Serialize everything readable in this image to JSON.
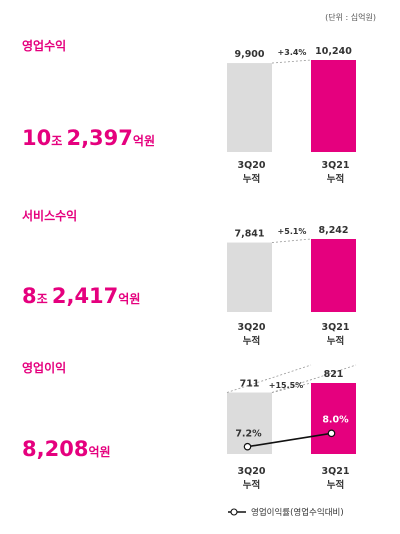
{
  "unit_note": "(단위 : 십억원)",
  "colors": {
    "accent": "#e5007e",
    "prev_bar": "#dcdcdc",
    "text": "#333333"
  },
  "chart_data": [
    {
      "type": "bar",
      "title": "영업수익",
      "total": {
        "num1": "10",
        "unit1": "조",
        "num2": "2,397",
        "unit2": "억원"
      },
      "categories": [
        "3Q20",
        "3Q21"
      ],
      "category_sub": "누적",
      "values": [
        9900,
        10240
      ],
      "value_labels": [
        "9,900",
        "10,240"
      ],
      "growth": "+3.4%",
      "ylim": [
        0,
        10240
      ]
    },
    {
      "type": "bar",
      "title": "서비스수익",
      "total": {
        "num1": "8",
        "unit1": "조",
        "num2": "2,417",
        "unit2": "억원"
      },
      "categories": [
        "3Q20",
        "3Q21"
      ],
      "category_sub": "누적",
      "values": [
        7841,
        8242
      ],
      "value_labels": [
        "7,841",
        "8,242"
      ],
      "growth": "+5.1%",
      "ylim": [
        0,
        8242
      ]
    },
    {
      "type": "bar",
      "title": "영업이익",
      "total": {
        "num1": "8,208",
        "unit1": "억원"
      },
      "categories": [
        "3Q20",
        "3Q21"
      ],
      "category_sub": "누적",
      "values": [
        711,
        821
      ],
      "value_labels": [
        "711",
        "821"
      ],
      "growth": "+15.5%",
      "ylim": [
        0,
        821
      ],
      "rate_series": {
        "name": "영업이익률(영업수익대비)",
        "values": [
          7.2,
          8.0
        ],
        "labels": [
          "7.2%",
          "8.0%"
        ]
      }
    }
  ]
}
